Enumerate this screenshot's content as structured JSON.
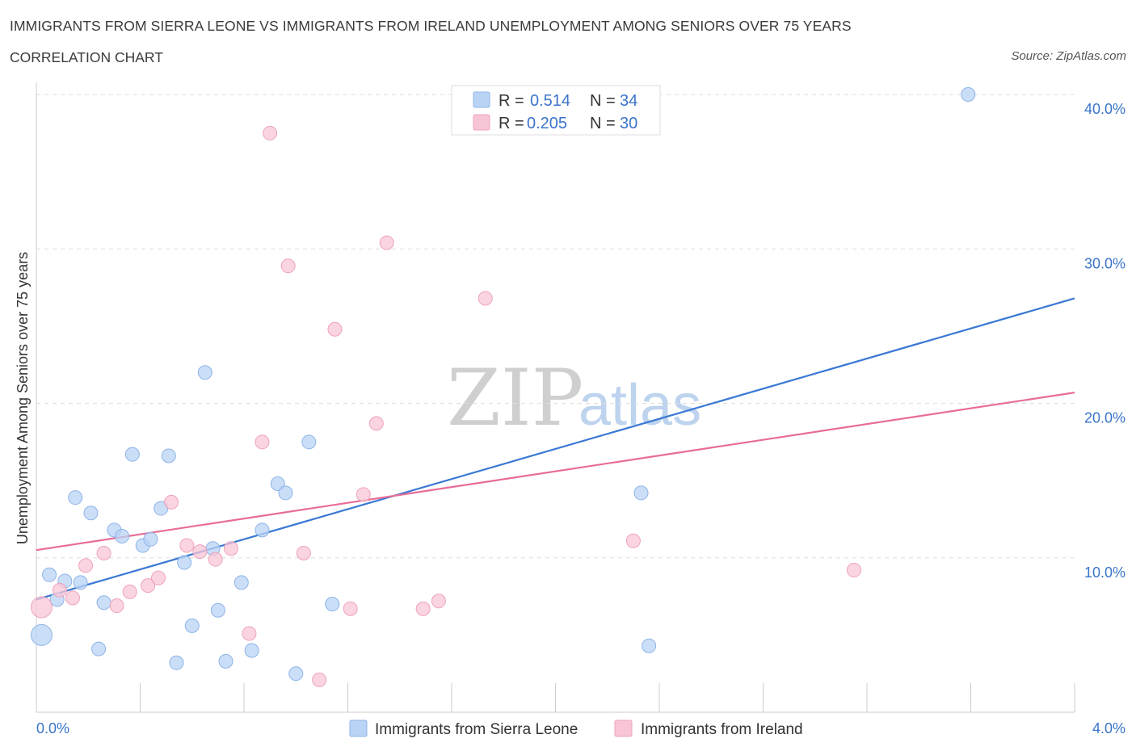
{
  "header": {
    "title": "IMMIGRANTS FROM SIERRA LEONE VS IMMIGRANTS FROM IRELAND UNEMPLOYMENT AMONG SENIORS OVER 75 YEARS",
    "subtitle": "CORRELATION CHART",
    "source": "Source: ZipAtlas.com"
  },
  "watermark": {
    "zip": "ZIP",
    "atlas": "atlas"
  },
  "colors": {
    "blue_fill": "#b9d3f5",
    "blue_stroke": "#8db4e6",
    "blue_line": "#3a78d4",
    "pink_fill": "#f8c5d6",
    "pink_stroke": "#eea3bd",
    "pink_line": "#e86c97",
    "tick_label": "#3a74c9",
    "grid": "#dedede"
  },
  "chart_data": {
    "type": "scatter",
    "title": "IMMIGRANTS FROM SIERRA LEONE VS IMMIGRANTS FROM IRELAND UNEMPLOYMENT AMONG SENIORS OVER 75 YEARS",
    "xlabel": "",
    "ylabel": "Unemployment Among Seniors over 75 years",
    "xlim": [
      0,
      4
    ],
    "ylim": [
      0,
      40
    ],
    "x_tick_labels": [
      "0.0%",
      "4.0%"
    ],
    "y_ticks": [
      10,
      20,
      30,
      40
    ],
    "y_tick_labels": [
      "10.0%",
      "20.0%",
      "30.0%",
      "40.0%"
    ],
    "grid": true,
    "legend": {
      "placement": "top-center",
      "rows": [
        {
          "r_label": "R =",
          "r_value": "0.514",
          "n_label": "N =",
          "n_value": "34"
        },
        {
          "r_label": "R =",
          "r_value": "0.205",
          "n_label": "N =",
          "n_value": "30"
        }
      ]
    },
    "series": [
      {
        "name": "Immigrants from Sierra Leone",
        "color": "blue",
        "trend": {
          "x": [
            0,
            4
          ],
          "y": [
            7.3,
            26.8
          ]
        },
        "points": [
          {
            "x": 0.02,
            "y": 5.0,
            "big": true
          },
          {
            "x": 0.05,
            "y": 8.9
          },
          {
            "x": 0.08,
            "y": 7.3
          },
          {
            "x": 0.11,
            "y": 8.5
          },
          {
            "x": 0.17,
            "y": 8.4
          },
          {
            "x": 0.15,
            "y": 13.9
          },
          {
            "x": 0.21,
            "y": 12.9
          },
          {
            "x": 0.24,
            "y": 4.1
          },
          {
            "x": 0.26,
            "y": 7.1
          },
          {
            "x": 0.3,
            "y": 11.8
          },
          {
            "x": 0.33,
            "y": 11.4
          },
          {
            "x": 0.37,
            "y": 16.7
          },
          {
            "x": 0.41,
            "y": 10.8
          },
          {
            "x": 0.44,
            "y": 11.2
          },
          {
            "x": 0.48,
            "y": 13.2
          },
          {
            "x": 0.51,
            "y": 16.6
          },
          {
            "x": 0.54,
            "y": 3.2
          },
          {
            "x": 0.57,
            "y": 9.7
          },
          {
            "x": 0.6,
            "y": 5.6
          },
          {
            "x": 0.65,
            "y": 22.0
          },
          {
            "x": 0.68,
            "y": 10.6
          },
          {
            "x": 0.7,
            "y": 6.6
          },
          {
            "x": 0.73,
            "y": 3.3
          },
          {
            "x": 0.79,
            "y": 8.4
          },
          {
            "x": 0.83,
            "y": 4.0
          },
          {
            "x": 0.87,
            "y": 11.8
          },
          {
            "x": 0.93,
            "y": 14.8
          },
          {
            "x": 0.96,
            "y": 14.2
          },
          {
            "x": 1.0,
            "y": 2.5
          },
          {
            "x": 1.05,
            "y": 17.5
          },
          {
            "x": 1.14,
            "y": 7.0
          },
          {
            "x": 2.33,
            "y": 14.2
          },
          {
            "x": 2.36,
            "y": 4.3
          },
          {
            "x": 3.59,
            "y": 40.0
          }
        ]
      },
      {
        "name": "Immigrants from Ireland",
        "color": "pink",
        "trend": {
          "x": [
            0,
            4
          ],
          "y": [
            10.5,
            20.7
          ]
        },
        "points": [
          {
            "x": 0.02,
            "y": 6.8,
            "big": true
          },
          {
            "x": 0.09,
            "y": 7.9
          },
          {
            "x": 0.14,
            "y": 7.4
          },
          {
            "x": 0.19,
            "y": 9.5
          },
          {
            "x": 0.26,
            "y": 10.3
          },
          {
            "x": 0.31,
            "y": 6.9
          },
          {
            "x": 0.36,
            "y": 7.8
          },
          {
            "x": 0.43,
            "y": 8.2
          },
          {
            "x": 0.47,
            "y": 8.7
          },
          {
            "x": 0.52,
            "y": 13.6
          },
          {
            "x": 0.58,
            "y": 10.8
          },
          {
            "x": 0.63,
            "y": 10.4
          },
          {
            "x": 0.69,
            "y": 9.9
          },
          {
            "x": 0.75,
            "y": 10.6
          },
          {
            "x": 0.82,
            "y": 5.1
          },
          {
            "x": 0.87,
            "y": 17.5
          },
          {
            "x": 0.9,
            "y": 37.5
          },
          {
            "x": 0.97,
            "y": 28.9
          },
          {
            "x": 1.03,
            "y": 10.3
          },
          {
            "x": 1.09,
            "y": 2.1
          },
          {
            "x": 1.15,
            "y": 24.8
          },
          {
            "x": 1.21,
            "y": 6.7
          },
          {
            "x": 1.26,
            "y": 14.1
          },
          {
            "x": 1.31,
            "y": 18.7
          },
          {
            "x": 1.35,
            "y": 30.4
          },
          {
            "x": 1.49,
            "y": 6.7
          },
          {
            "x": 1.55,
            "y": 7.2
          },
          {
            "x": 1.73,
            "y": 26.8
          },
          {
            "x": 2.3,
            "y": 11.1
          },
          {
            "x": 3.15,
            "y": 9.2
          }
        ]
      }
    ]
  }
}
